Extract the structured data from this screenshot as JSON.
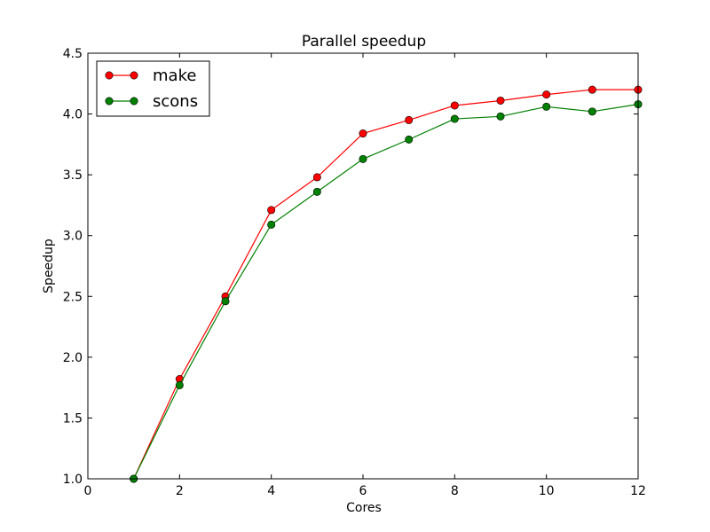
{
  "chart_data": {
    "type": "line",
    "title": "Parallel speedup",
    "xlabel": "Cores",
    "ylabel": "Speedup",
    "xlim": [
      0,
      12
    ],
    "ylim": [
      1.0,
      4.5
    ],
    "xticks": [
      0,
      2,
      4,
      6,
      8,
      10,
      12
    ],
    "yticks": [
      1.0,
      1.5,
      2.0,
      2.5,
      3.0,
      3.5,
      4.0,
      4.5
    ],
    "xtick_labels": [
      "0",
      "2",
      "4",
      "6",
      "8",
      "10",
      "12"
    ],
    "ytick_labels": [
      "1.0",
      "1.5",
      "2.0",
      "2.5",
      "3.0",
      "3.5",
      "4.0",
      "4.5"
    ],
    "grid": false,
    "legend_position": "top-left",
    "x": [
      1,
      2,
      3,
      4,
      5,
      6,
      7,
      8,
      9,
      10,
      11,
      12
    ],
    "series": [
      {
        "name": "make",
        "color": "#ff0000",
        "marker_color": "#ff0000",
        "values": [
          1.0,
          1.82,
          2.5,
          3.21,
          3.48,
          3.84,
          3.95,
          4.07,
          4.11,
          4.16,
          4.2,
          4.2
        ]
      },
      {
        "name": "scons",
        "color": "#008000",
        "marker_color": "#008000",
        "values": [
          1.0,
          1.77,
          2.46,
          3.09,
          3.36,
          3.63,
          3.79,
          3.96,
          3.98,
          4.06,
          4.02,
          4.08
        ]
      }
    ]
  }
}
